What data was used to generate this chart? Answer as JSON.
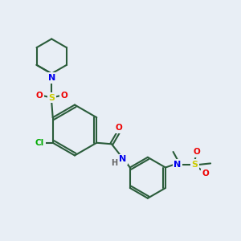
{
  "bg_color": "#e8eef5",
  "bond_color": "#2a5c3a",
  "atom_colors": {
    "N": "#0000ee",
    "O": "#ee0000",
    "S": "#cccc00",
    "Cl": "#00aa00",
    "H": "#666666",
    "C": "#2a5c3a"
  },
  "lw": 1.5,
  "font_size": 8
}
